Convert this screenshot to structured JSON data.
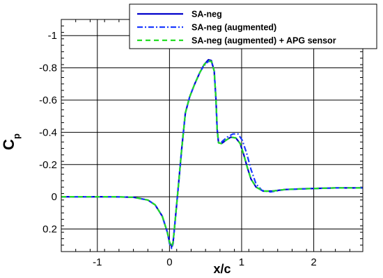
{
  "chart_data": {
    "type": "line",
    "title": "",
    "xlabel": "x/c",
    "ylabel": "C",
    "ylabel_subscript": "p",
    "xlim": [
      -1.5,
      2.68
    ],
    "ylim": [
      0.34,
      -1.1
    ],
    "y_inverted": true,
    "grid": true,
    "legend_position": "top-right",
    "x_ticks": [
      -1,
      0,
      1,
      2
    ],
    "x_tick_labels": [
      "-1",
      "0",
      "1",
      "2"
    ],
    "y_ticks": [
      -1,
      -0.8,
      -0.6,
      -0.4,
      -0.2,
      0,
      0.2
    ],
    "y_tick_labels": [
      "-1",
      "-0.8",
      "-0.6",
      "-0.4",
      "-0.2",
      "0",
      "0.2"
    ],
    "series": [
      {
        "name": "SA-neg",
        "color": "#0000cc",
        "dash": "solid",
        "points": [
          [
            -1.5,
            0.0
          ],
          [
            -0.8,
            0.0
          ],
          [
            -0.5,
            0.003
          ],
          [
            -0.3,
            0.02
          ],
          [
            -0.2,
            0.05
          ],
          [
            -0.1,
            0.12
          ],
          [
            -0.03,
            0.22
          ],
          [
            0.0,
            0.28
          ],
          [
            0.03,
            0.31
          ],
          [
            0.05,
            0.28
          ],
          [
            0.08,
            0.14
          ],
          [
            0.12,
            -0.05
          ],
          [
            0.17,
            -0.3
          ],
          [
            0.22,
            -0.52
          ],
          [
            0.28,
            -0.62
          ],
          [
            0.35,
            -0.7
          ],
          [
            0.42,
            -0.77
          ],
          [
            0.48,
            -0.82
          ],
          [
            0.54,
            -0.85
          ],
          [
            0.58,
            -0.845
          ],
          [
            0.62,
            -0.78
          ],
          [
            0.645,
            -0.6
          ],
          [
            0.66,
            -0.42
          ],
          [
            0.68,
            -0.335
          ],
          [
            0.72,
            -0.33
          ],
          [
            0.78,
            -0.35
          ],
          [
            0.85,
            -0.37
          ],
          [
            0.92,
            -0.365
          ],
          [
            0.98,
            -0.33
          ],
          [
            1.03,
            -0.26
          ],
          [
            1.08,
            -0.18
          ],
          [
            1.13,
            -0.11
          ],
          [
            1.2,
            -0.06
          ],
          [
            1.3,
            -0.035
          ],
          [
            1.42,
            -0.035
          ],
          [
            1.6,
            -0.045
          ],
          [
            1.9,
            -0.05
          ],
          [
            2.3,
            -0.055
          ],
          [
            2.68,
            -0.055
          ]
        ]
      },
      {
        "name": "SA-neg (augmented)",
        "color": "#1a3aff",
        "dash": "dashdot",
        "points": [
          [
            -1.5,
            0.0
          ],
          [
            -0.8,
            0.0
          ],
          [
            -0.5,
            0.003
          ],
          [
            -0.3,
            0.02
          ],
          [
            -0.2,
            0.05
          ],
          [
            -0.1,
            0.12
          ],
          [
            -0.03,
            0.22
          ],
          [
            0.0,
            0.29
          ],
          [
            0.03,
            0.32
          ],
          [
            0.05,
            0.29
          ],
          [
            0.08,
            0.14
          ],
          [
            0.12,
            -0.05
          ],
          [
            0.17,
            -0.3
          ],
          [
            0.22,
            -0.52
          ],
          [
            0.28,
            -0.62
          ],
          [
            0.35,
            -0.7
          ],
          [
            0.42,
            -0.77
          ],
          [
            0.48,
            -0.815
          ],
          [
            0.54,
            -0.84
          ],
          [
            0.58,
            -0.84
          ],
          [
            0.62,
            -0.78
          ],
          [
            0.645,
            -0.6
          ],
          [
            0.66,
            -0.42
          ],
          [
            0.68,
            -0.34
          ],
          [
            0.72,
            -0.34
          ],
          [
            0.8,
            -0.37
          ],
          [
            0.88,
            -0.39
          ],
          [
            0.95,
            -0.39
          ],
          [
            1.01,
            -0.35
          ],
          [
            1.07,
            -0.27
          ],
          [
            1.13,
            -0.17
          ],
          [
            1.2,
            -0.08
          ],
          [
            1.28,
            -0.04
          ],
          [
            1.4,
            -0.03
          ],
          [
            1.6,
            -0.045
          ],
          [
            1.9,
            -0.05
          ],
          [
            2.3,
            -0.055
          ],
          [
            2.68,
            -0.055
          ]
        ]
      },
      {
        "name": "SA-neg (augmented) + APG sensor",
        "color": "#22dd22",
        "dash": "dashed",
        "points": [
          [
            -1.5,
            0.0
          ],
          [
            -0.8,
            0.0
          ],
          [
            -0.5,
            0.003
          ],
          [
            -0.3,
            0.02
          ],
          [
            -0.2,
            0.05
          ],
          [
            -0.1,
            0.12
          ],
          [
            -0.03,
            0.22
          ],
          [
            0.0,
            0.28
          ],
          [
            0.03,
            0.31
          ],
          [
            0.05,
            0.28
          ],
          [
            0.08,
            0.14
          ],
          [
            0.12,
            -0.05
          ],
          [
            0.17,
            -0.3
          ],
          [
            0.22,
            -0.52
          ],
          [
            0.28,
            -0.62
          ],
          [
            0.35,
            -0.7
          ],
          [
            0.42,
            -0.77
          ],
          [
            0.48,
            -0.82
          ],
          [
            0.54,
            -0.845
          ],
          [
            0.58,
            -0.84
          ],
          [
            0.62,
            -0.78
          ],
          [
            0.645,
            -0.6
          ],
          [
            0.66,
            -0.42
          ],
          [
            0.68,
            -0.335
          ],
          [
            0.72,
            -0.33
          ],
          [
            0.78,
            -0.35
          ],
          [
            0.85,
            -0.37
          ],
          [
            0.92,
            -0.365
          ],
          [
            0.98,
            -0.33
          ],
          [
            1.03,
            -0.26
          ],
          [
            1.08,
            -0.18
          ],
          [
            1.13,
            -0.11
          ],
          [
            1.2,
            -0.06
          ],
          [
            1.3,
            -0.035
          ],
          [
            1.42,
            -0.035
          ],
          [
            1.6,
            -0.045
          ],
          [
            1.9,
            -0.05
          ],
          [
            2.3,
            -0.055
          ],
          [
            2.68,
            -0.055
          ]
        ]
      }
    ]
  }
}
